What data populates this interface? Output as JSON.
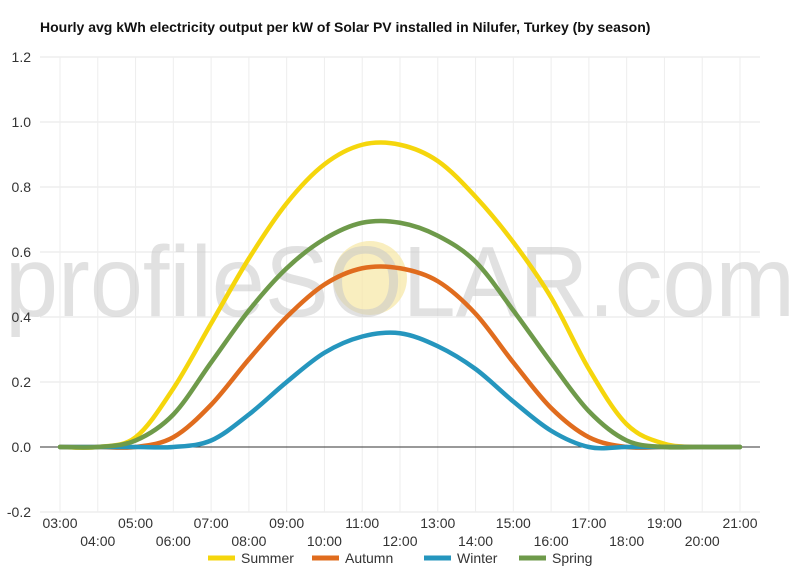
{
  "chart_data": {
    "type": "line",
    "title": "Hourly avg kWh electricity output per kW of Solar PV installed in Nilufer, Turkey (by season)",
    "watermark": "profileSOLAR.com",
    "xlabel": "",
    "ylabel": "",
    "ylim": [
      -0.2,
      1.2
    ],
    "yticks": [
      "-0.2",
      "0.0",
      "0.2",
      "0.4",
      "0.6",
      "0.8",
      "1.0",
      "1.2"
    ],
    "grid": true,
    "legend_position": "bottom",
    "categories": [
      "03:00",
      "04:00",
      "05:00",
      "06:00",
      "07:00",
      "08:00",
      "09:00",
      "10:00",
      "11:00",
      "12:00",
      "13:00",
      "14:00",
      "15:00",
      "16:00",
      "17:00",
      "18:00",
      "19:00",
      "20:00",
      "21:00"
    ],
    "series": [
      {
        "name": "Summer",
        "color": "#f5d60c",
        "values": [
          0.0,
          0.0,
          0.03,
          0.18,
          0.38,
          0.58,
          0.75,
          0.87,
          0.93,
          0.93,
          0.88,
          0.77,
          0.63,
          0.46,
          0.24,
          0.07,
          0.01,
          0.0,
          0.0
        ]
      },
      {
        "name": "Autumn",
        "color": "#e06c1e",
        "values": [
          0.0,
          0.0,
          0.0,
          0.03,
          0.13,
          0.27,
          0.4,
          0.5,
          0.55,
          0.55,
          0.51,
          0.41,
          0.26,
          0.12,
          0.03,
          0.0,
          0.0,
          0.0,
          0.0
        ]
      },
      {
        "name": "Winter",
        "color": "#2596be",
        "values": [
          0.0,
          0.0,
          0.0,
          0.0,
          0.02,
          0.1,
          0.2,
          0.29,
          0.34,
          0.35,
          0.31,
          0.24,
          0.14,
          0.05,
          0.0,
          0.0,
          0.0,
          0.0,
          0.0
        ]
      },
      {
        "name": "Spring",
        "color": "#6e9a4a",
        "values": [
          0.0,
          0.0,
          0.02,
          0.1,
          0.26,
          0.42,
          0.55,
          0.64,
          0.69,
          0.69,
          0.65,
          0.57,
          0.42,
          0.26,
          0.11,
          0.02,
          0.0,
          0.0,
          0.0
        ]
      }
    ]
  }
}
